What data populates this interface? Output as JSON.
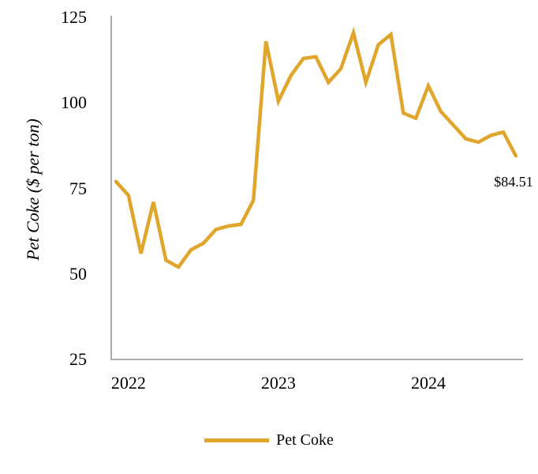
{
  "chart_data": {
    "type": "line",
    "title": "",
    "ylabel": "Pet Coke ($ per ton)",
    "yticks": [
      125,
      100,
      75,
      50,
      25
    ],
    "ylim": [
      25,
      125
    ],
    "x_tick_labels": [
      "2022",
      "2023",
      "2024"
    ],
    "grid": false,
    "legend_position": "bottom",
    "axis_color": "#A0A0A0",
    "series": [
      {
        "name": "Pet Coke",
        "color": "#E0A52B",
        "values": [
          77,
          73,
          56,
          71,
          54,
          52,
          57,
          59,
          63,
          64,
          64.5,
          71.5,
          118,
          100.5,
          108,
          113,
          113.5,
          106,
          110,
          120.5,
          106,
          117,
          120,
          97,
          95.5,
          105,
          97.5,
          93.5,
          89.5,
          88.5,
          90.5,
          91.5,
          84.51
        ]
      }
    ],
    "end_annotation": "$84.51",
    "legend": {
      "label": "Pet Coke"
    }
  }
}
